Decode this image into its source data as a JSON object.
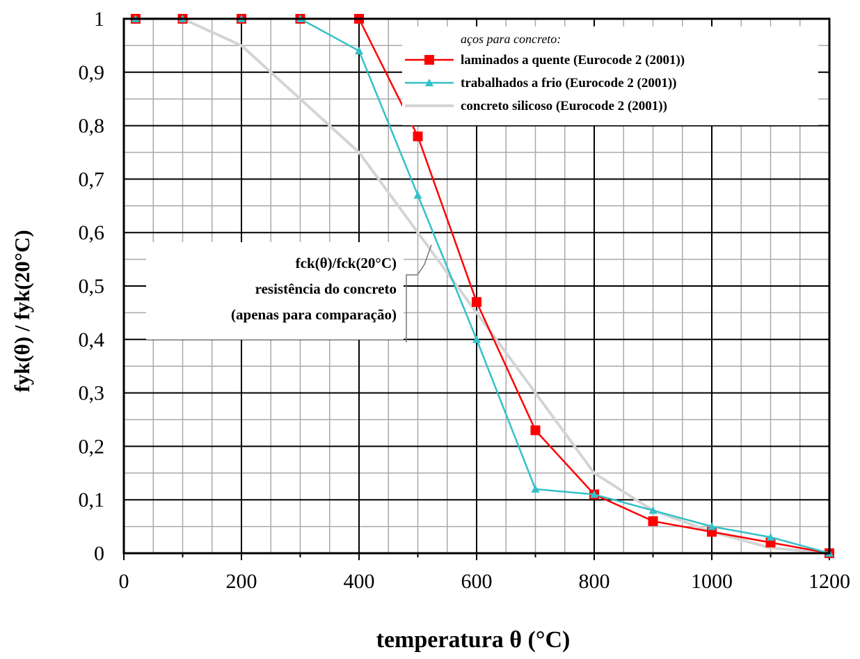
{
  "chart_data": {
    "type": "line",
    "xlabel": "temperatura θ (°C)",
    "ylabel": "fyk(θ) / fyk(20°C)",
    "xlim": [
      0,
      1200
    ],
    "ylim": [
      0,
      1
    ],
    "x_ticks": [
      "0",
      "200",
      "400",
      "600",
      "800",
      "1000",
      "1200"
    ],
    "y_ticks": [
      "0",
      "0,1",
      "0,2",
      "0,3",
      "0,4",
      "0,5",
      "0,6",
      "0,7",
      "0,8",
      "0,9",
      "1"
    ],
    "grid": true,
    "legend_position": "top-right",
    "legend_title": "aços para concreto:",
    "series": [
      {
        "name": "laminados a quente (Eurocode 2 (2001))",
        "color": "#ff0000",
        "marker": "square",
        "x": [
          20,
          100,
          200,
          300,
          400,
          500,
          600,
          700,
          800,
          900,
          1000,
          1100,
          1200
        ],
        "y": [
          1.0,
          1.0,
          1.0,
          1.0,
          1.0,
          0.78,
          0.47,
          0.23,
          0.11,
          0.06,
          0.04,
          0.02,
          0.0
        ]
      },
      {
        "name": "trabalhados a frio (Eurocode 2 (2001))",
        "color": "#33c0c8",
        "marker": "triangle",
        "x": [
          20,
          100,
          200,
          300,
          400,
          500,
          600,
          700,
          800,
          900,
          1000,
          1100,
          1200
        ],
        "y": [
          1.0,
          1.0,
          1.0,
          1.0,
          0.94,
          0.67,
          0.4,
          0.12,
          0.11,
          0.08,
          0.05,
          0.03,
          0.0
        ]
      },
      {
        "name": "concreto silicoso (Eurocode 2 (2001))",
        "color": "#d4d4d4",
        "marker": "none",
        "x": [
          20,
          100,
          200,
          300,
          400,
          500,
          600,
          700,
          800,
          900,
          1000,
          1100,
          1200
        ],
        "y": [
          1.0,
          1.0,
          0.95,
          0.85,
          0.75,
          0.6,
          0.45,
          0.3,
          0.15,
          0.08,
          0.04,
          0.01,
          0.0
        ]
      }
    ],
    "annotation": {
      "lines": [
        "fck(θ)/fck(20°C)",
        "resistência do concreto",
        "(apenas para comparação)"
      ]
    }
  }
}
